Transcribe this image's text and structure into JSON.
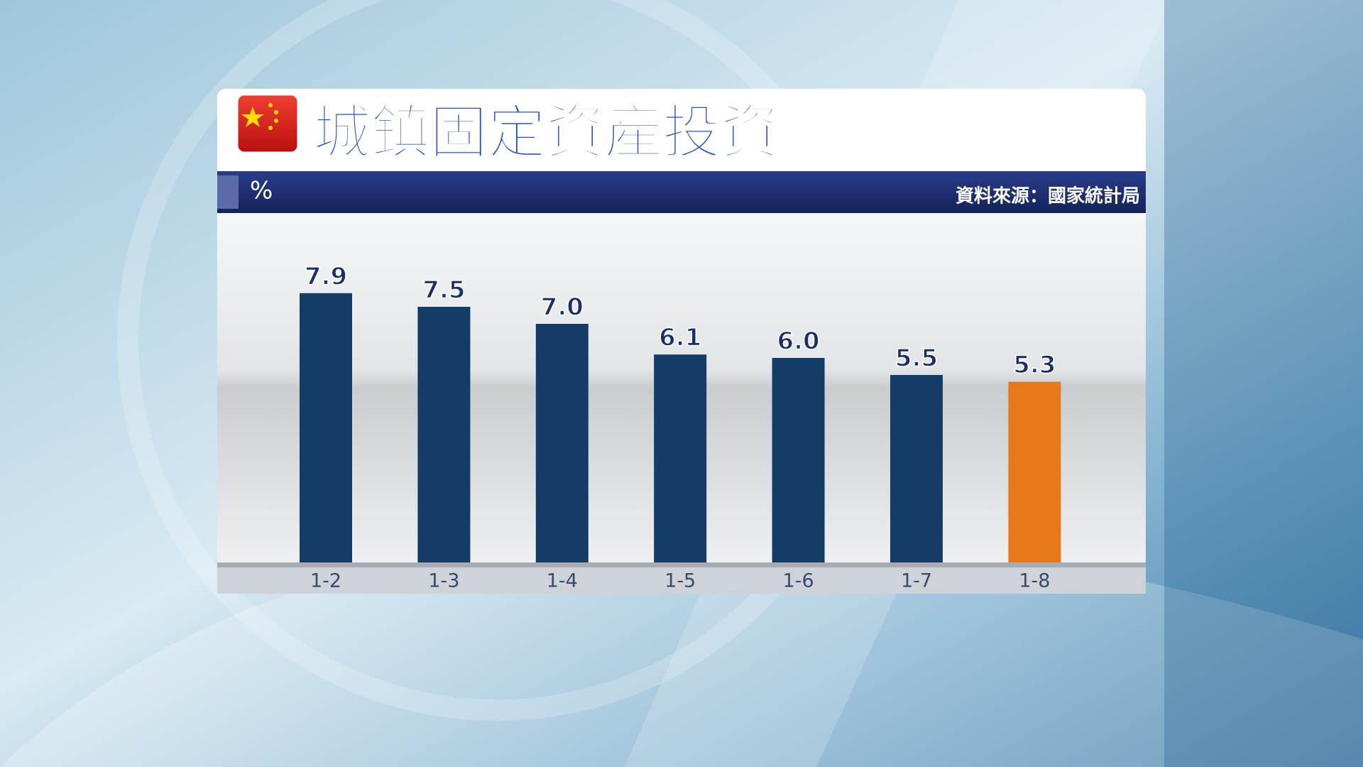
{
  "chart_data": {
    "type": "bar",
    "title": "城鎮固定資產投資",
    "unit": "%",
    "source": "資料來源：國家統計局",
    "categories": [
      "1-2",
      "1-3",
      "1-4",
      "1-5",
      "1-6",
      "1-7",
      "1-8"
    ],
    "values": [
      7.9,
      7.5,
      7.0,
      6.1,
      6.0,
      5.5,
      5.3
    ],
    "value_labels": [
      "7.9",
      "7.5",
      "7.0",
      "6.1",
      "6.0",
      "5.5",
      "5.3"
    ],
    "colors": [
      "#143c66",
      "#143c66",
      "#143c66",
      "#143c66",
      "#143c66",
      "#143c66",
      "#e8791a"
    ]
  }
}
